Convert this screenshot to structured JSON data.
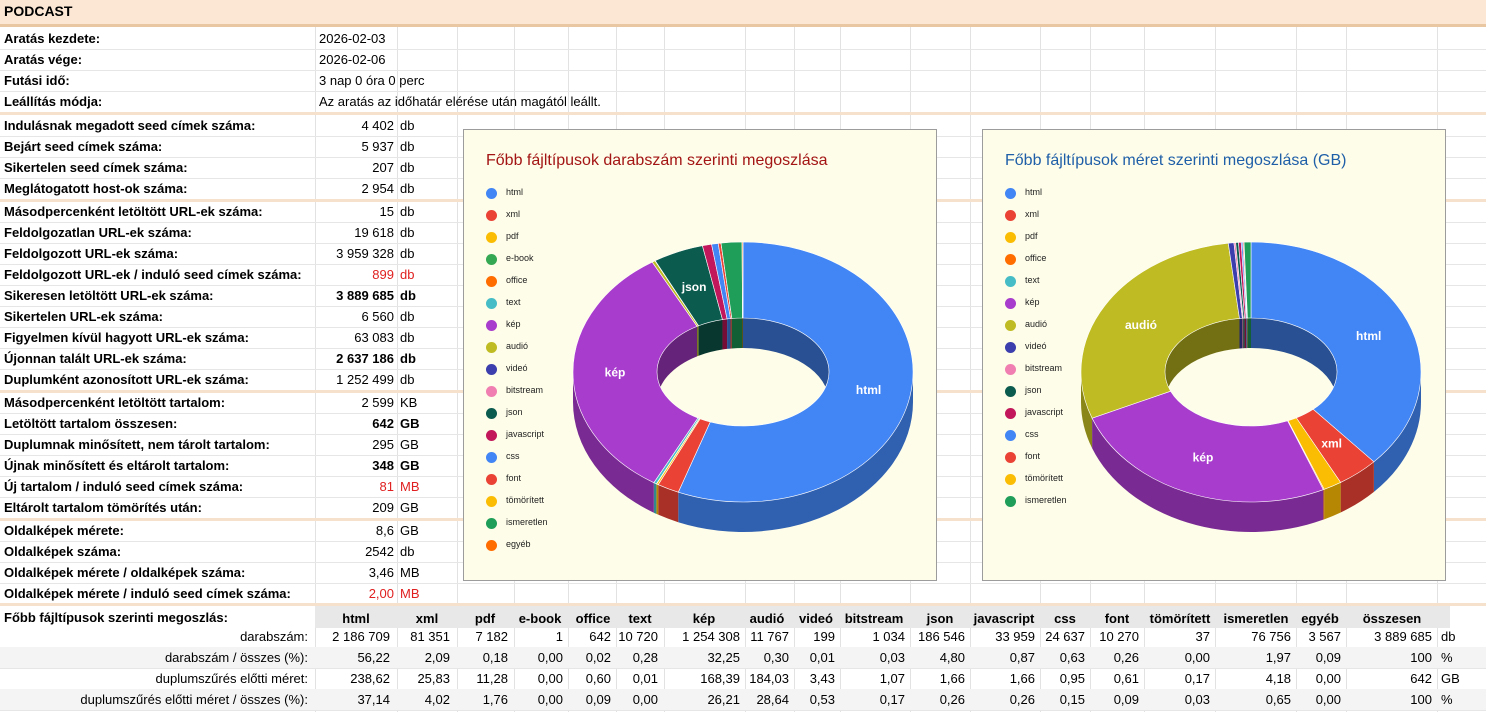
{
  "title": "PODCAST",
  "info": [
    {
      "label": "Aratás kezdete:",
      "value": "2026-02-03"
    },
    {
      "label": "Aratás vége:",
      "value": "2026-02-06"
    },
    {
      "label": "Futási idő:",
      "value": "3 nap 0 óra 0 perc"
    },
    {
      "label": "Leállítás módja:",
      "value": "Az aratás az időhatár elérése után magától leállt."
    }
  ],
  "stats": [
    {
      "label": "Indulásnak megadott seed címek száma:",
      "value": "4 402",
      "unit": "db",
      "style": ""
    },
    {
      "label": "Bejárt seed címek száma:",
      "value": "5 937",
      "unit": "db",
      "style": ""
    },
    {
      "label": "Sikertelen seed címek száma:",
      "value": "207",
      "unit": "db",
      "style": ""
    },
    {
      "label": "Meglátogatott host-ok száma:",
      "value": "2 954",
      "unit": "db",
      "style": ""
    },
    {
      "label": "Másodpercenként letöltött URL-ek száma:",
      "value": "15",
      "unit": "db",
      "style": ""
    },
    {
      "label": "Feldolgozatlan URL-ek száma:",
      "value": "19 618",
      "unit": "db",
      "style": ""
    },
    {
      "label": "Feldolgozott URL-ek száma:",
      "value": "3 959 328",
      "unit": "db",
      "style": ""
    },
    {
      "label": "Feldolgozott URL-ek / induló seed címek száma:",
      "value": "899",
      "unit": "db",
      "style": "red"
    },
    {
      "label": "Sikeresen letöltött URL-ek száma:",
      "value": "3 889 685",
      "unit": "db",
      "style": "b"
    },
    {
      "label": "Sikertelen URL-ek száma:",
      "value": "6 560",
      "unit": "db",
      "style": ""
    },
    {
      "label": "Figyelmen kívül hagyott URL-ek száma:",
      "value": "63 083",
      "unit": "db",
      "style": ""
    },
    {
      "label": "Újonnan talált URL-ek száma:",
      "value": "2 637 186",
      "unit": "db",
      "style": "b"
    },
    {
      "label": "Duplumként azonosított URL-ek száma:",
      "value": "1 252 499",
      "unit": "db",
      "style": ""
    },
    {
      "label": "Másodpercenként letöltött tartalom:",
      "value": "2 599",
      "unit": "KB",
      "style": ""
    },
    {
      "label": "Letöltött tartalom összesen:",
      "value": "642",
      "unit": "GB",
      "style": "b"
    },
    {
      "label": "Duplumnak minősített, nem tárolt tartalom:",
      "value": "295",
      "unit": "GB",
      "style": ""
    },
    {
      "label": "Újnak minősített és eltárolt tartalom:",
      "value": "348",
      "unit": "GB",
      "style": "b"
    },
    {
      "label": "Új tartalom / induló seed címek száma:",
      "value": "81",
      "unit": "MB",
      "style": "red"
    },
    {
      "label": "Eltárolt tartalom tömörítés után:",
      "value": "209",
      "unit": "GB",
      "style": ""
    },
    {
      "label": "Oldalképek mérete:",
      "value": "8,6",
      "unit": "GB",
      "style": ""
    },
    {
      "label": "Oldalképek száma:",
      "value": "2542",
      "unit": "db",
      "style": ""
    },
    {
      "label": "Oldalképek mérete  / oldalképek száma:",
      "value": "3,46",
      "unit": "MB",
      "style": ""
    },
    {
      "label": "Oldalképek mérete  / induló seed címek száma:",
      "value": "2,00",
      "unit": "MB",
      "style": "red"
    }
  ],
  "charts": {
    "count_title": "Főbb fájltípusok darabszám szerinti megoszlása",
    "size_title": "Főbb fájltípusok méret szerinti megoszlása (GB)",
    "count_title_color": "#a31515",
    "size_title_color": "#1f5fa8",
    "count_legend": [
      "html",
      "xml",
      "pdf",
      "e-book",
      "office",
      "text",
      "kép",
      "audió",
      "videó",
      "bitstream",
      "json",
      "javascript",
      "css",
      "font",
      "tömörített",
      "ismeretlen",
      "egyéb"
    ],
    "count_colors": [
      "#4285f4",
      "#ea4335",
      "#fbbc04",
      "#34a853",
      "#ff6d01",
      "#46bdc6",
      "#a83ccc",
      "#bfbb22",
      "#3b3eac",
      "#f07eb0",
      "#0c5b4f",
      "#c2185b",
      "#4285f4",
      "#ea4335",
      "#fbbc04",
      "#1e9e58",
      "#ff6d01"
    ],
    "size_legend": [
      "html",
      "xml",
      "pdf",
      "office",
      "text",
      "kép",
      "audió",
      "videó",
      "bitstream",
      "json",
      "javascript",
      "css",
      "font",
      "tömörített",
      "ismeretlen"
    ],
    "size_colors": [
      "#4285f4",
      "#ea4335",
      "#fbbc04",
      "#ff6d01",
      "#46bdc6",
      "#a83ccc",
      "#bfbb22",
      "#3b3eac",
      "#f07eb0",
      "#0c5b4f",
      "#c2185b",
      "#4285f4",
      "#ea4335",
      "#fbbc04",
      "#1e9e58"
    ],
    "count_slice_labels": {
      "html": "html",
      "kép": "kép",
      "json": "json"
    },
    "size_slice_labels": {
      "html": "html",
      "xml": "xml",
      "kép": "kép",
      "audió": "audió"
    }
  },
  "chart_data": [
    {
      "type": "pie",
      "title": "Főbb fájltípusok darabszám szerinti megoszlása",
      "categories": [
        "html",
        "xml",
        "pdf",
        "e-book",
        "office",
        "text",
        "kép",
        "audió",
        "videó",
        "bitstream",
        "json",
        "javascript",
        "css",
        "font",
        "tömörített",
        "ismeretlen",
        "egyéb"
      ],
      "values": [
        2186709,
        81351,
        7182,
        1,
        642,
        10720,
        1254308,
        11767,
        199,
        1034,
        186546,
        33959,
        24637,
        10270,
        37,
        76756,
        3567
      ]
    },
    {
      "type": "pie",
      "title": "Főbb fájltípusok méret szerinti megoszlása (GB)",
      "categories": [
        "html",
        "xml",
        "pdf",
        "office",
        "text",
        "kép",
        "audió",
        "videó",
        "bitstream",
        "json",
        "javascript",
        "css",
        "font",
        "tömörített",
        "ismeretlen"
      ],
      "values": [
        238.62,
        25.83,
        11.28,
        0.6,
        0.01,
        168.39,
        184.03,
        3.43,
        1.07,
        1.66,
        1.66,
        0.95,
        0.61,
        0.17,
        4.18
      ]
    }
  ],
  "table": {
    "label": "Főbb fájltípusok szerinti megoszlás:",
    "headers": [
      "html",
      "xml",
      "pdf",
      "e-book",
      "office",
      "text",
      "kép",
      "audió",
      "videó",
      "bitstream",
      "json",
      "javascript",
      "css",
      "font",
      "tömörített",
      "ismeretlen",
      "egyéb",
      "összesen"
    ],
    "rows": [
      {
        "label": "darabszám:",
        "cells": [
          "2 186 709",
          "81 351",
          "7 182",
          "1",
          "642",
          "10 720",
          "1 254 308",
          "11 767",
          "199",
          "1 034",
          "186 546",
          "33 959",
          "24 637",
          "10 270",
          "37",
          "76 756",
          "3 567",
          "3 889 685"
        ],
        "unit": "db"
      },
      {
        "label": "darabszám / összes (%):",
        "cells": [
          "56,22",
          "2,09",
          "0,18",
          "0,00",
          "0,02",
          "0,28",
          "32,25",
          "0,30",
          "0,01",
          "0,03",
          "4,80",
          "0,87",
          "0,63",
          "0,26",
          "0,00",
          "1,97",
          "0,09",
          "100"
        ],
        "unit": "%"
      },
      {
        "label": "duplumszűrés előtti méret:",
        "cells": [
          "238,62",
          "25,83",
          "11,28",
          "0,00",
          "0,60",
          "0,01",
          "168,39",
          "184,03",
          "3,43",
          "1,07",
          "1,66",
          "1,66",
          "0,95",
          "0,61",
          "0,17",
          "4,18",
          "0,00",
          "642"
        ],
        "unit": "GB"
      },
      {
        "label": "duplumszűrés előtti méret / összes (%):",
        "cells": [
          "37,14",
          "4,02",
          "1,76",
          "0,00",
          "0,09",
          "0,00",
          "26,21",
          "28,64",
          "0,53",
          "0,17",
          "0,26",
          "0,26",
          "0,15",
          "0,09",
          "0,03",
          "0,65",
          "0,00",
          "100"
        ],
        "unit": "%"
      }
    ]
  }
}
